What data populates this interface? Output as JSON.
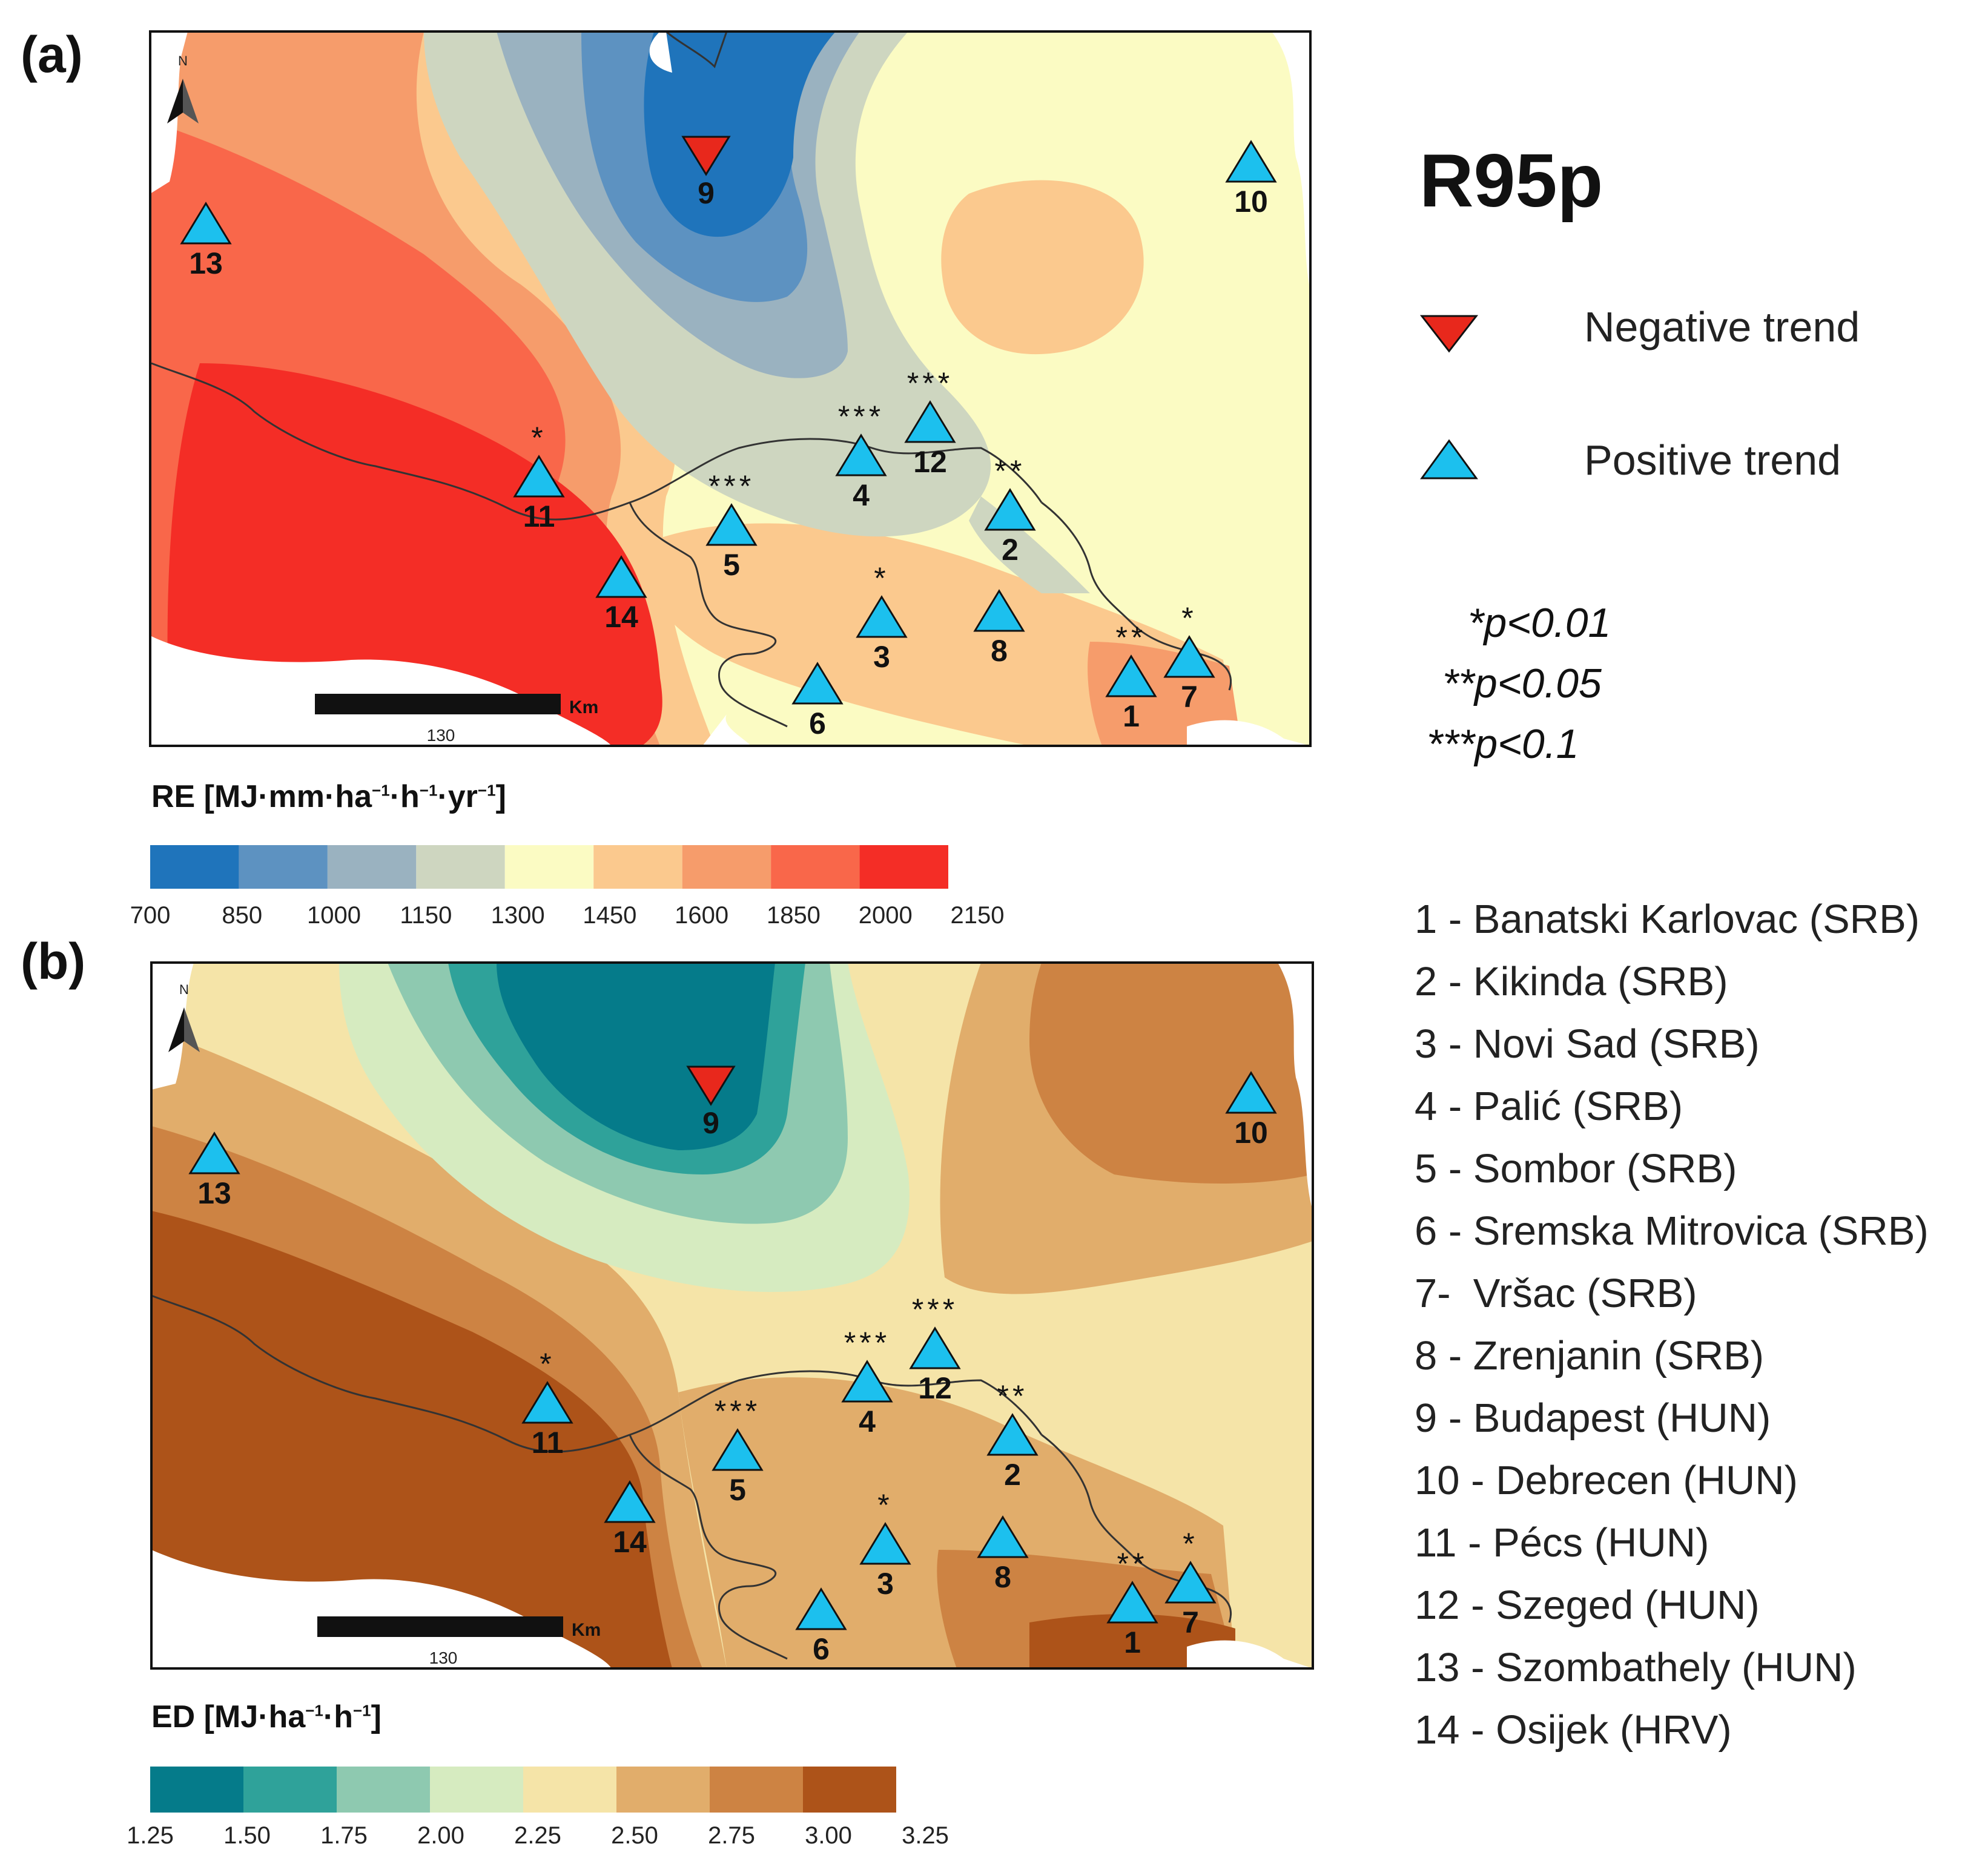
{
  "figure_title": "R95p",
  "colors": {
    "negative": "#e8281c",
    "positive": "#1cc0ee",
    "re_classes": [
      "#1f74bb",
      "#5d92c1",
      "#9ab2c0",
      "#ced6c0",
      "#fbfbc3",
      "#fbc98e",
      "#f69c6b",
      "#f9674a",
      "#f42d26"
    ],
    "ed_classes": [
      "#057b8a",
      "#2fa29a",
      "#8ec9b0",
      "#d6ebc0",
      "#f5e4a8",
      "#e1ad6b",
      "#cd8343",
      "#ad5319"
    ]
  },
  "panels": {
    "a": {
      "label": "(a)",
      "scale_number": "130",
      "scale_unit": "Km",
      "north": "N",
      "colorbar": {
        "title_main": "RE [MJ·mm·ha",
        "title_sup1": "−1",
        "title_mid": "·h",
        "title_sup2": "−1",
        "title_mid2": "·yr",
        "title_sup3": "−1",
        "title_end": "]",
        "ticks": [
          "700",
          "850",
          "1000",
          "1150",
          "1300",
          "1450",
          "1600",
          "1850",
          "2000",
          "2150"
        ]
      },
      "stations": [
        {
          "id": "1",
          "trend": "positive",
          "sig": "**"
        },
        {
          "id": "2",
          "trend": "positive",
          "sig": "**"
        },
        {
          "id": "3",
          "trend": "positive",
          "sig": "*"
        },
        {
          "id": "4",
          "trend": "positive",
          "sig": "***"
        },
        {
          "id": "5",
          "trend": "positive",
          "sig": "***"
        },
        {
          "id": "6",
          "trend": "positive",
          "sig": ""
        },
        {
          "id": "7",
          "trend": "positive",
          "sig": "*"
        },
        {
          "id": "8",
          "trend": "positive",
          "sig": ""
        },
        {
          "id": "9",
          "trend": "negative",
          "sig": ""
        },
        {
          "id": "10",
          "trend": "positive",
          "sig": ""
        },
        {
          "id": "11",
          "trend": "positive",
          "sig": "*"
        },
        {
          "id": "12",
          "trend": "positive",
          "sig": "***"
        },
        {
          "id": "13",
          "trend": "positive",
          "sig": ""
        },
        {
          "id": "14",
          "trend": "positive",
          "sig": ""
        }
      ]
    },
    "b": {
      "label": "(b)",
      "scale_number": "130",
      "scale_unit": "Km",
      "north": "N",
      "colorbar": {
        "title_main": "ED [MJ·ha",
        "title_sup1": "−1",
        "title_mid": "·h",
        "title_sup2": "−1",
        "title_end": "]",
        "ticks": [
          "1.25",
          "1.50",
          "1.75",
          "2.00",
          "2.25",
          "2.50",
          "2.75",
          "3.00",
          "3.25"
        ]
      },
      "stations": [
        {
          "id": "1",
          "trend": "positive",
          "sig": "**"
        },
        {
          "id": "2",
          "trend": "positive",
          "sig": "**"
        },
        {
          "id": "3",
          "trend": "positive",
          "sig": "*"
        },
        {
          "id": "4",
          "trend": "positive",
          "sig": "***"
        },
        {
          "id": "5",
          "trend": "positive",
          "sig": "***"
        },
        {
          "id": "6",
          "trend": "positive",
          "sig": ""
        },
        {
          "id": "7",
          "trend": "positive",
          "sig": "*"
        },
        {
          "id": "8",
          "trend": "positive",
          "sig": ""
        },
        {
          "id": "9",
          "trend": "negative",
          "sig": ""
        },
        {
          "id": "10",
          "trend": "positive",
          "sig": ""
        },
        {
          "id": "11",
          "trend": "positive",
          "sig": "*"
        },
        {
          "id": "12",
          "trend": "positive",
          "sig": "***"
        },
        {
          "id": "13",
          "trend": "positive",
          "sig": ""
        },
        {
          "id": "14",
          "trend": "positive",
          "sig": ""
        }
      ]
    }
  },
  "legend": {
    "negative_label": "Negative trend",
    "positive_label": "Positive trend",
    "sig1": "*p<0.01",
    "sig2": "**p<0.05",
    "sig3": "***p<0.1"
  },
  "station_list": [
    "1 - Banatski Karlovac (SRB)",
    "2 - Kikinda (SRB)",
    "3 - Novi Sad (SRB)",
    "4 - Palić (SRB)",
    "5 - Sombor (SRB)",
    "6 - Sremska Mitrovica (SRB)",
    "7-  Vršac (SRB)",
    "8 - Zrenjanin (SRB)",
    "9 - Budapest (HUN)",
    "10 - Debrecen (HUN)",
    "11 - Pécs (HUN)",
    "12 - Szeged (HUN)",
    "13 - Szombathely (HUN)",
    "14 - Osijek (HRV)"
  ]
}
